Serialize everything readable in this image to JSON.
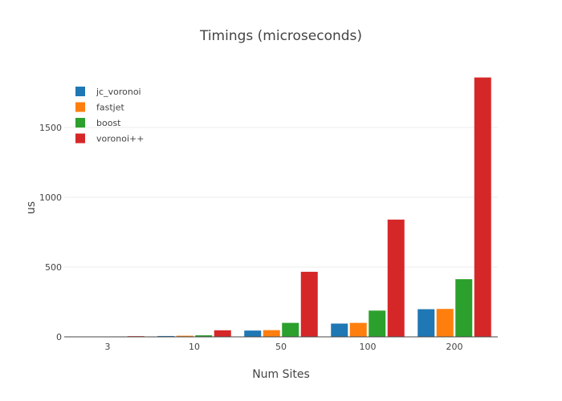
{
  "chart_data": {
    "type": "bar",
    "title": "Timings (microseconds)",
    "xlabel": "Num Sites",
    "ylabel": "us",
    "categories": [
      "3",
      "10",
      "50",
      "100",
      "200"
    ],
    "ylim": [
      0,
      1850
    ],
    "yticks": [
      0,
      500,
      1000,
      1500
    ],
    "grid": true,
    "legend_position": "top-left",
    "series": [
      {
        "name": "jc_voronoi",
        "color": "#1f77b4",
        "values": [
          2,
          6,
          45,
          95,
          198
        ]
      },
      {
        "name": "fastjet",
        "color": "#ff7f0e",
        "values": [
          2,
          8,
          48,
          100,
          200
        ]
      },
      {
        "name": "boost",
        "color": "#2ca02c",
        "values": [
          3,
          11,
          100,
          188,
          413
        ]
      },
      {
        "name": "voronoi++",
        "color": "#d62728",
        "values": [
          5,
          47,
          466,
          840,
          1858
        ]
      }
    ]
  }
}
